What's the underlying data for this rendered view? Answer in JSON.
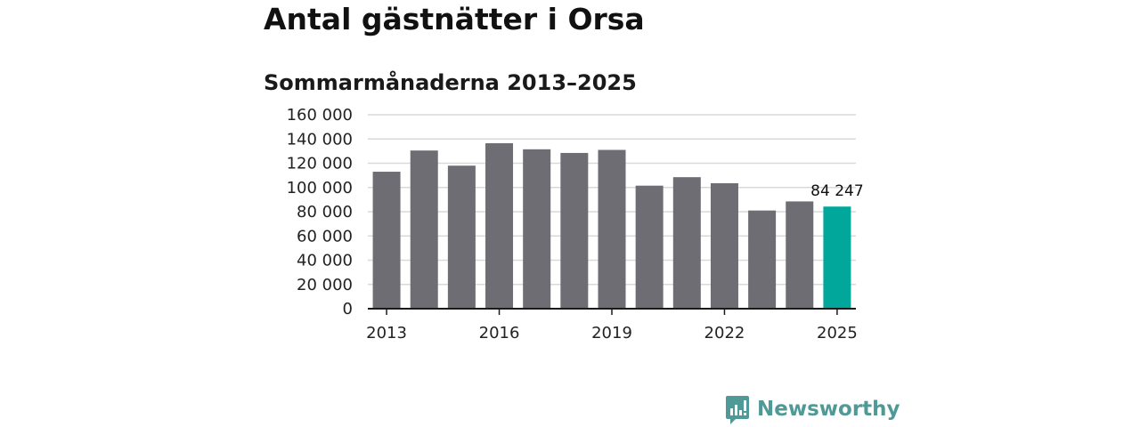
{
  "chart_data": {
    "type": "bar",
    "title": "Antal gästnätter i Orsa",
    "subtitle": "Sommarmånaderna 2013–2025",
    "xlabel": "",
    "ylabel": "",
    "categories": [
      "2013",
      "2014",
      "2015",
      "2016",
      "2017",
      "2018",
      "2019",
      "2020",
      "2021",
      "2022",
      "2023",
      "2024",
      "2025"
    ],
    "x_tick_labels": [
      "2013",
      "2016",
      "2019",
      "2022",
      "2025"
    ],
    "values": [
      113000,
      130500,
      118000,
      136500,
      131500,
      128500,
      131000,
      101500,
      108500,
      103500,
      81000,
      88500,
      84247
    ],
    "ylim": [
      0,
      160000
    ],
    "y_ticks": [
      0,
      20000,
      40000,
      60000,
      80000,
      100000,
      120000,
      140000,
      160000
    ],
    "y_tick_labels": [
      "0",
      "20 000",
      "40 000",
      "60 000",
      "80 000",
      "100 000",
      "120 000",
      "140 000",
      "160 000"
    ],
    "grid": true,
    "colors": {
      "default_bar": "#6e6d73",
      "highlight_bar": "#00a79a",
      "grid": "#d9d9d9",
      "axis": "#1a1a1a"
    },
    "highlight_index": 12,
    "annotations": [
      {
        "category": "2025",
        "text": "84 247"
      }
    ]
  },
  "brand": {
    "name": "Newsworthy",
    "icon": "newsworthy-logo-icon",
    "color": "#4f9a96"
  }
}
